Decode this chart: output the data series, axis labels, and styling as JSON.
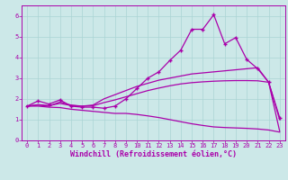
{
  "xlabel": "Windchill (Refroidissement éolien,°C)",
  "background_color": "#cce8e8",
  "line_color": "#aa00aa",
  "xlim": [
    -0.5,
    23.5
  ],
  "ylim": [
    0,
    6.5
  ],
  "xticks": [
    0,
    1,
    2,
    3,
    4,
    5,
    6,
    7,
    8,
    9,
    10,
    11,
    12,
    13,
    14,
    15,
    16,
    17,
    18,
    19,
    20,
    21,
    22,
    23
  ],
  "yticks": [
    0,
    1,
    2,
    3,
    4,
    5,
    6
  ],
  "series": [
    {
      "x": [
        0,
        1,
        2,
        3,
        4,
        5,
        6,
        7,
        8,
        9,
        10,
        11,
        12,
        13,
        14,
        15,
        16,
        17,
        18,
        19,
        20,
        21,
        22,
        23
      ],
      "y": [
        1.65,
        1.9,
        1.75,
        1.95,
        1.65,
        1.6,
        1.6,
        1.55,
        1.65,
        2.0,
        2.5,
        3.0,
        3.3,
        3.85,
        4.35,
        5.35,
        5.35,
        6.05,
        4.65,
        4.95,
        3.9,
        3.45,
        2.8,
        1.1
      ],
      "marker": "+",
      "linestyle": "-"
    },
    {
      "x": [
        0,
        1,
        2,
        3,
        4,
        5,
        6,
        7,
        8,
        9,
        10,
        11,
        12,
        13,
        14,
        15,
        16,
        17,
        18,
        19,
        20,
        21,
        22,
        23
      ],
      "y": [
        1.65,
        1.7,
        1.65,
        1.85,
        1.7,
        1.65,
        1.7,
        2.0,
        2.2,
        2.4,
        2.6,
        2.75,
        2.9,
        3.0,
        3.1,
        3.2,
        3.25,
        3.3,
        3.35,
        3.4,
        3.45,
        3.5,
        2.8,
        1.0
      ],
      "marker": null,
      "linestyle": "-"
    },
    {
      "x": [
        0,
        1,
        2,
        3,
        4,
        5,
        6,
        7,
        8,
        9,
        10,
        11,
        12,
        13,
        14,
        15,
        16,
        17,
        18,
        19,
        20,
        21,
        22,
        23
      ],
      "y": [
        1.65,
        1.72,
        1.68,
        1.78,
        1.68,
        1.65,
        1.67,
        1.82,
        1.95,
        2.1,
        2.25,
        2.4,
        2.52,
        2.63,
        2.72,
        2.78,
        2.82,
        2.85,
        2.87,
        2.88,
        2.88,
        2.87,
        2.8,
        0.45
      ],
      "marker": null,
      "linestyle": "-"
    },
    {
      "x": [
        0,
        1,
        2,
        3,
        4,
        5,
        6,
        7,
        8,
        9,
        10,
        11,
        12,
        13,
        14,
        15,
        16,
        17,
        18,
        19,
        20,
        21,
        22,
        23
      ],
      "y": [
        1.65,
        1.65,
        1.6,
        1.58,
        1.5,
        1.45,
        1.4,
        1.35,
        1.3,
        1.3,
        1.25,
        1.18,
        1.1,
        1.0,
        0.9,
        0.8,
        0.72,
        0.65,
        0.62,
        0.6,
        0.58,
        0.55,
        0.5,
        0.4
      ],
      "marker": null,
      "linestyle": "-"
    }
  ],
  "grid_color": "#aad4d4",
  "tick_fontsize": 5.0,
  "xlabel_fontsize": 6.0,
  "marker_size": 3.5,
  "linewidth": 0.9
}
